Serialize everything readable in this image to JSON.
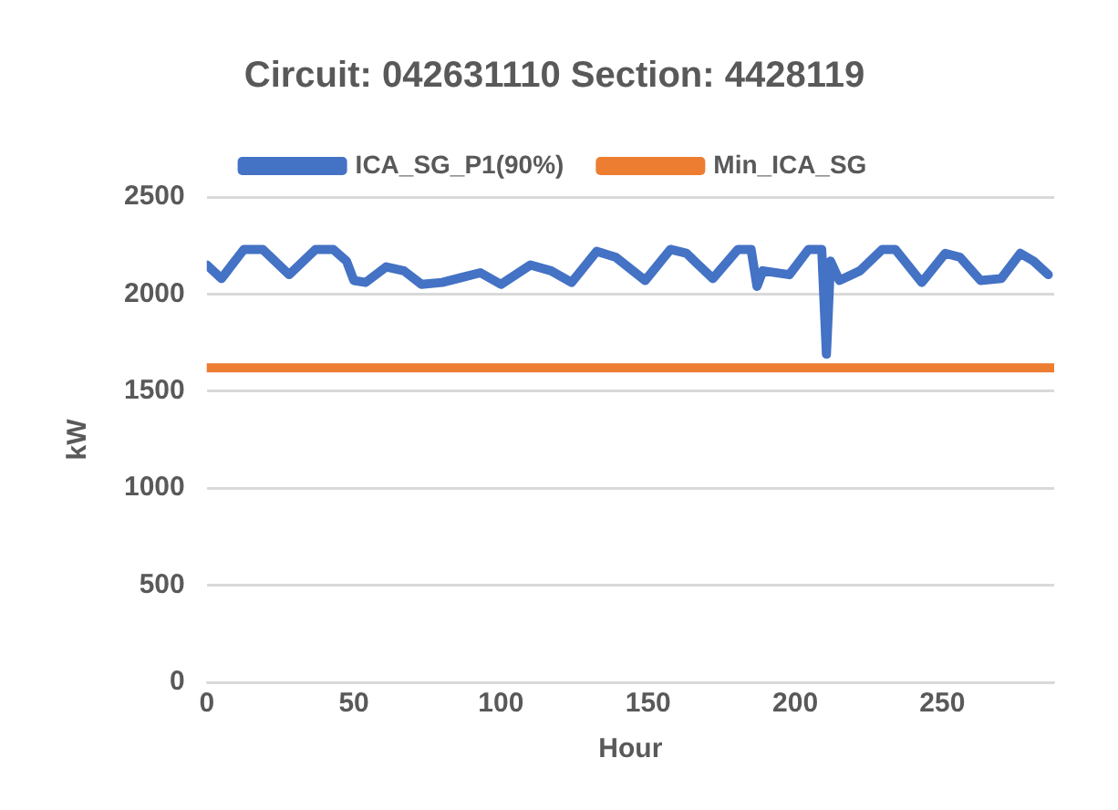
{
  "chart_data": {
    "type": "line",
    "title": "Circuit: 042631110 Section: 4428119",
    "xlabel": "Hour",
    "ylabel": "kW",
    "xlim": [
      0,
      288
    ],
    "xticks": [
      0,
      50,
      100,
      150,
      200,
      250
    ],
    "ylim": [
      0,
      2500
    ],
    "yticks": [
      0,
      500,
      1000,
      1500,
      2000,
      2500
    ],
    "grid": "y",
    "legend": "top",
    "marker": "none",
    "line_style": "solid",
    "series": [
      {
        "name": "ICA_SG_P1(90%)",
        "color": "#4472c4",
        "x": [
          0,
          5,
          12.6,
          19,
          28,
          37,
          43,
          47.5,
          50,
          54,
          61,
          67,
          73,
          80,
          93,
          100,
          110,
          117,
          124,
          132.5,
          139,
          149,
          157.6,
          163,
          172,
          180.5,
          185,
          187,
          189,
          198,
          204.5,
          209,
          210.6,
          212,
          215,
          222,
          229.6,
          234,
          243,
          251,
          256,
          263,
          270,
          276.5,
          281,
          286
        ],
        "values": [
          2150,
          2080,
          2230,
          2230,
          2100,
          2230,
          2230,
          2170,
          2070,
          2060,
          2140,
          2120,
          2050,
          2060,
          2110,
          2050,
          2150,
          2120,
          2060,
          2220,
          2190,
          2070,
          2230,
          2210,
          2080,
          2230,
          2230,
          2040,
          2120,
          2100,
          2230,
          2230,
          1690,
          2170,
          2070,
          2120,
          2230,
          2230,
          2060,
          2210,
          2190,
          2070,
          2080,
          2210,
          2170,
          2100
        ]
      },
      {
        "name": "Min_ICA_SG",
        "color": "#ed7d31",
        "x": [
          0,
          288
        ],
        "values": [
          1620,
          1620
        ]
      }
    ]
  }
}
